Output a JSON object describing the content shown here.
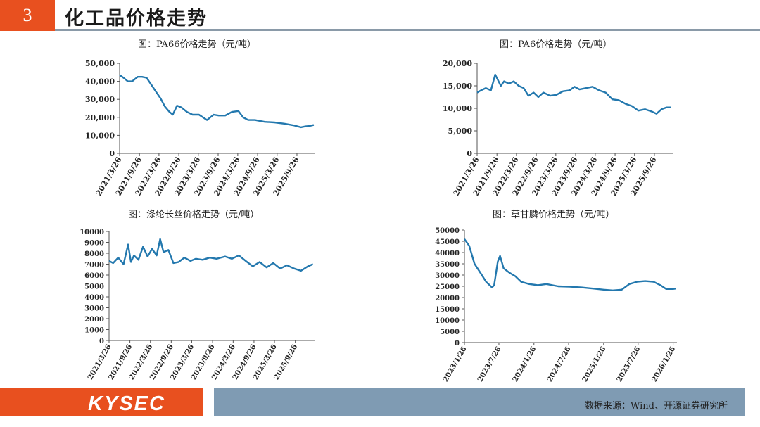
{
  "header": {
    "number": "3",
    "title": "化工品价格走势"
  },
  "footer": {
    "logo": "KYSEC",
    "source": "数据来源：Wind、开源证券研究所"
  },
  "chart_data": [
    {
      "type": "line",
      "title": "图：PA66价格走势（元/吨）",
      "color": "#2378ae",
      "yticks": [
        "50,000",
        "40,000",
        "30,000",
        "20,000",
        "10,000",
        "0"
      ],
      "ylim": [
        0,
        50000
      ],
      "xticks": [
        "2021/3/26",
        "2021/9/26",
        "2022/3/26",
        "2022/9/26",
        "2023/3/26",
        "2023/9/26",
        "2024/3/26",
        "2024/9/26",
        "2025/3/26",
        "2025/9/26"
      ],
      "xlim": [
        "2021-03-26",
        "2026-03-15"
      ],
      "x": [
        "2021-03-26",
        "2021-05-01",
        "2021-06-10",
        "2021-07-20",
        "2021-09-10",
        "2021-10-20",
        "2021-12-01",
        "2022-01-15",
        "2022-03-01",
        "2022-04-10",
        "2022-05-20",
        "2022-07-01",
        "2022-08-01",
        "2022-09-10",
        "2022-10-20",
        "2022-12-10",
        "2023-02-01",
        "2023-04-01",
        "2023-06-15",
        "2023-08-15",
        "2023-10-01",
        "2023-12-01",
        "2024-02-01",
        "2024-04-01",
        "2024-05-15",
        "2024-07-01",
        "2024-09-01",
        "2024-12-01",
        "2025-03-01",
        "2025-06-01",
        "2025-09-01",
        "2025-11-01",
        "2025-12-15",
        "2026-01-20",
        "2026-03-01"
      ],
      "y": [
        43500,
        42000,
        40000,
        40000,
        42500,
        42500,
        42000,
        38000,
        34000,
        30500,
        26000,
        23000,
        21500,
        26500,
        25500,
        23000,
        21500,
        21500,
        18500,
        21500,
        21000,
        21000,
        23000,
        23500,
        20000,
        18500,
        18500,
        17500,
        17200,
        16500,
        15500,
        14500,
        15000,
        15200,
        15800
      ]
    },
    {
      "type": "line",
      "title": "图：PA6价格走势（元/吨）",
      "color": "#2378ae",
      "yticks": [
        "20,000",
        "15,000",
        "10,000",
        "5,000",
        "0"
      ],
      "ylim": [
        0,
        20000
      ],
      "xticks": [
        "2021/3/26",
        "2021/9/26",
        "2022/3/26",
        "2022/9/26",
        "2023/3/26",
        "2023/9/26",
        "2024/3/26",
        "2024/9/26",
        "2025/3/26",
        "2025/9/26"
      ],
      "xlim": [
        "2021-03-26",
        "2026-03-15"
      ],
      "x": [
        "2021-03-26",
        "2021-05-01",
        "2021-06-15",
        "2021-08-01",
        "2021-09-10",
        "2021-10-01",
        "2021-11-01",
        "2021-12-01",
        "2022-01-15",
        "2022-03-01",
        "2022-04-15",
        "2022-06-01",
        "2022-07-15",
        "2022-09-01",
        "2022-10-15",
        "2022-12-01",
        "2023-02-01",
        "2023-04-01",
        "2023-06-01",
        "2023-08-01",
        "2023-09-15",
        "2023-11-01",
        "2024-01-01",
        "2024-03-01",
        "2024-05-01",
        "2024-07-01",
        "2024-09-01",
        "2024-11-01",
        "2025-01-01",
        "2025-03-01",
        "2025-05-01",
        "2025-07-01",
        "2025-09-01",
        "2025-10-15",
        "2025-12-01",
        "2026-01-15",
        "2026-03-01"
      ],
      "y": [
        13500,
        14000,
        14500,
        14000,
        17500,
        16500,
        15000,
        16000,
        15500,
        16000,
        15000,
        14500,
        12800,
        13500,
        12500,
        13500,
        12800,
        13000,
        13800,
        14000,
        14800,
        14200,
        14500,
        14800,
        14000,
        13500,
        12000,
        11800,
        11000,
        10500,
        9500,
        9800,
        9300,
        8800,
        9800,
        10200,
        10200
      ]
    },
    {
      "type": "line",
      "title": "图：涤纶长丝价格走势（元/吨）",
      "color": "#2378ae",
      "yticks": [
        "10000",
        "9000",
        "8000",
        "7000",
        "6000",
        "5000",
        "4000",
        "3000",
        "2000",
        "1000",
        "0"
      ],
      "ylim": [
        0,
        10000
      ],
      "xticks": [
        "2021/3/26",
        "2021/9/26",
        "2022/3/26",
        "2022/9/26",
        "2023/3/26",
        "2023/9/26",
        "2024/3/26",
        "2024/9/26",
        "2025/3/26",
        "2025/9/26"
      ],
      "xlim": [
        "2021-03-26",
        "2026-03-15"
      ],
      "x": [
        "2021-03-26",
        "2021-05-01",
        "2021-06-15",
        "2021-08-01",
        "2021-09-10",
        "2021-10-05",
        "2021-11-01",
        "2021-12-10",
        "2022-01-20",
        "2022-03-01",
        "2022-04-10",
        "2022-05-20",
        "2022-06-20",
        "2022-07-20",
        "2022-09-01",
        "2022-10-15",
        "2022-12-01",
        "2023-01-20",
        "2023-03-15",
        "2023-05-01",
        "2023-07-01",
        "2023-09-01",
        "2023-11-01",
        "2024-01-15",
        "2024-03-15",
        "2024-05-15",
        "2024-07-15",
        "2024-09-15",
        "2024-11-15",
        "2025-01-15",
        "2025-03-15",
        "2025-05-15",
        "2025-07-15",
        "2025-09-15",
        "2025-11-15",
        "2026-01-15",
        "2026-03-01"
      ],
      "y": [
        7300,
        7100,
        7600,
        7000,
        8800,
        7200,
        7800,
        7400,
        8600,
        7700,
        8400,
        7800,
        9300,
        8100,
        8300,
        7100,
        7200,
        7600,
        7300,
        7500,
        7400,
        7600,
        7500,
        7700,
        7500,
        7800,
        7300,
        6800,
        7200,
        6700,
        7100,
        6600,
        6900,
        6600,
        6400,
        6800,
        7000
      ]
    },
    {
      "type": "line",
      "title": "图：草甘膦价格走势（元/吨）",
      "color": "#2378ae",
      "yticks": [
        "50000",
        "45000",
        "40000",
        "35000",
        "30000",
        "25000",
        "20000",
        "15000",
        "10000",
        "5000",
        "0"
      ],
      "ylim": [
        0,
        50000
      ],
      "xticks": [
        "2023/1/26",
        "2023/7/26",
        "2024/1/26",
        "2024/7/26",
        "2025/1/26",
        "2025/7/26",
        "2026/1/26"
      ],
      "xlim": [
        "2023-01-26",
        "2026-02-15"
      ],
      "x": [
        "2023-01-26",
        "2023-02-20",
        "2023-03-20",
        "2023-04-20",
        "2023-05-20",
        "2023-06-20",
        "2023-07-01",
        "2023-07-20",
        "2023-08-01",
        "2023-08-20",
        "2023-09-20",
        "2023-10-20",
        "2023-11-20",
        "2024-01-01",
        "2024-02-15",
        "2024-04-01",
        "2024-06-01",
        "2024-08-01",
        "2024-10-01",
        "2024-12-01",
        "2025-01-26",
        "2025-03-15",
        "2025-05-01",
        "2025-06-10",
        "2025-07-20",
        "2025-09-01",
        "2025-10-15",
        "2025-11-20",
        "2025-12-20",
        "2026-01-26",
        "2026-02-10"
      ],
      "y": [
        46000,
        43000,
        35000,
        31000,
        27000,
        24500,
        25500,
        36000,
        38500,
        33000,
        31000,
        29500,
        27000,
        26000,
        25500,
        26000,
        25000,
        24800,
        24500,
        24000,
        23500,
        23200,
        23500,
        26000,
        27000,
        27300,
        27000,
        25500,
        23800,
        23800,
        24000
      ]
    }
  ]
}
